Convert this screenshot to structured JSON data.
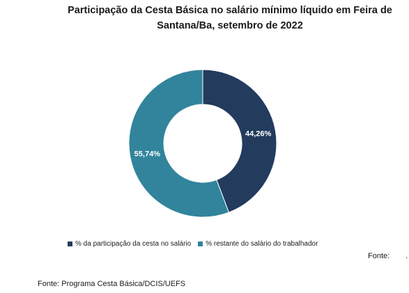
{
  "chart_data": {
    "type": "pie",
    "title_line1": "Participação da Cesta Básica no salário mínimo líquido em Feira de",
    "title_line2": "Santana/Ba, setembro de 2022",
    "slices": [
      {
        "label": "% da participação da cesta no salário",
        "value": 44.26,
        "display": "44,26%",
        "color": "#233b5d"
      },
      {
        "label": "% restante do salário do trabalhador",
        "value": 55.74,
        "display": "55,74%",
        "color": "#31849b"
      }
    ],
    "hole": "donut",
    "legend_position": "bottom"
  },
  "fonte_label": "Fonte:",
  "fonte_dot": ".",
  "source": "Fonte: Programa Cesta Básica/DCIS/UEFS"
}
